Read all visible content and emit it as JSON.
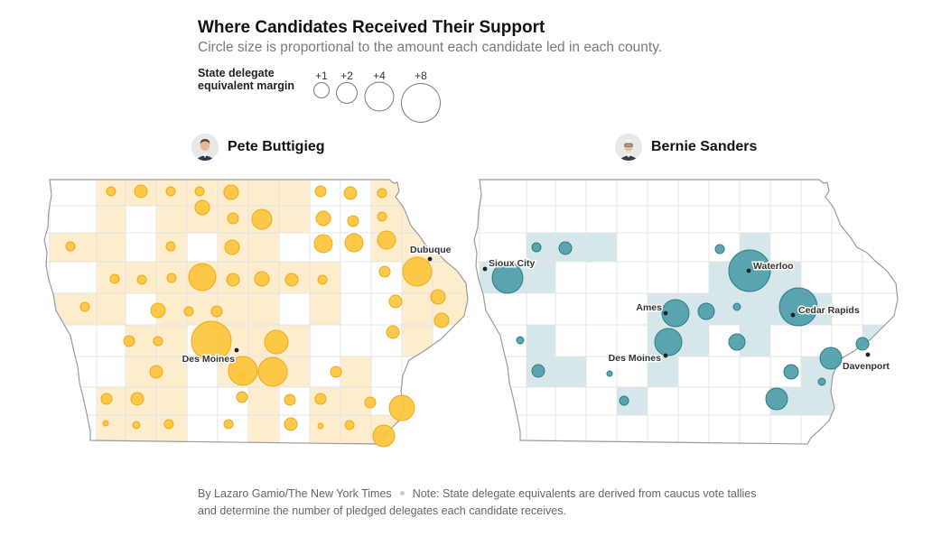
{
  "title": "Where Candidates Received Their Support",
  "subtitle": "Circle size is proportional to the amount each candidate led in each county.",
  "legend": {
    "label_line1": "State delegate",
    "label_line2": "equivalent margin",
    "items": [
      {
        "label": "+1",
        "value": 1
      },
      {
        "label": "+2",
        "value": 2
      },
      {
        "label": "+4",
        "value": 4
      },
      {
        "label": "+8",
        "value": 8
      }
    ]
  },
  "colors": {
    "buttigieg_fill": "#fcc43c",
    "buttigieg_stroke": "#f0a818",
    "buttigieg_county": "#fdedcc",
    "sanders_fill": "#4e9ea8",
    "sanders_stroke": "#2e7c86",
    "sanders_county": "#d5e7ea",
    "map_outline": "#9a9a9a",
    "county_line": "#e4e4e4"
  },
  "candidates": [
    {
      "name": "Pete Buttigieg",
      "color_key": "buttigieg",
      "cities": [
        {
          "name": "Dubuque",
          "anchor": "start"
        },
        {
          "name": "Des Moines",
          "anchor": "end"
        }
      ]
    },
    {
      "name": "Bernie Sanders",
      "color_key": "sanders",
      "cities": [
        {
          "name": "Sioux City",
          "anchor": "start"
        },
        {
          "name": "Waterloo",
          "anchor": "start"
        },
        {
          "name": "Ames",
          "anchor": "end"
        },
        {
          "name": "Cedar Rapids",
          "anchor": "start"
        },
        {
          "name": "Des Moines",
          "anchor": "end"
        },
        {
          "name": "Davenport",
          "anchor": "start"
        }
      ]
    }
  ],
  "footer": {
    "byline": "By Lazaro Gamio/The New York Times",
    "note": "Note: State delegate equivalents are derived from caucus vote tallies and determine the number of pledged delegates each candidate receives."
  }
}
